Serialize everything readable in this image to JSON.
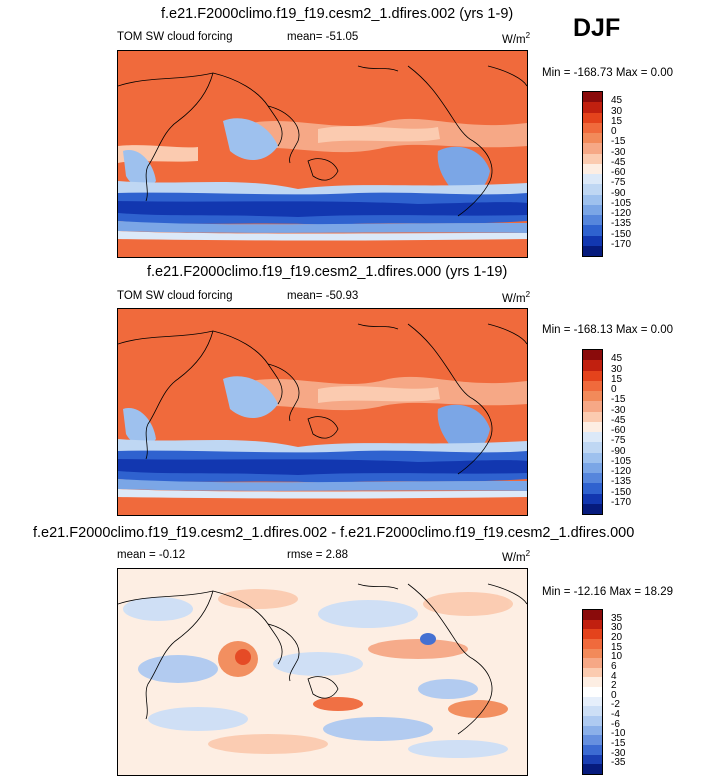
{
  "season": "DJF",
  "panels": [
    {
      "title": "f.e21.F2000climo.f19_f19.cesm2_1.dfires.002 (yrs 1-9)",
      "left_label": "TOM SW cloud forcing",
      "center_label": "mean= -51.05",
      "units": "W/m",
      "units_sup": "2",
      "range_label": "Min = -168.73 Max =   0.00",
      "levels": [
        "45",
        "30",
        "15",
        "0",
        "-15",
        "-30",
        "-45",
        "-60",
        "-75",
        "-90",
        "-105",
        "-120",
        "-135",
        "-150",
        "-170"
      ],
      "colors": [
        "#8a0b0b",
        "#c1200f",
        "#e4431c",
        "#f06a3c",
        "#f28a5a",
        "#f6a886",
        "#fbcbb0",
        "#fdeee3",
        "#dce9f8",
        "#bfd7f3",
        "#9ec1ee",
        "#7ba6e6",
        "#5686dc",
        "#2f62cf",
        "#1237b0",
        "#061b7d"
      ]
    },
    {
      "title": "f.e21.F2000climo.f19_f19.cesm2_1.dfires.000 (yrs 1-19)",
      "left_label": "TOM SW cloud forcing",
      "center_label": "mean= -50.93",
      "units": "W/m",
      "units_sup": "2",
      "range_label": "Min = -168.13 Max =   0.00",
      "levels": [
        "45",
        "30",
        "15",
        "0",
        "-15",
        "-30",
        "-45",
        "-60",
        "-75",
        "-90",
        "-105",
        "-120",
        "-135",
        "-150",
        "-170"
      ],
      "colors": [
        "#8a0b0b",
        "#c1200f",
        "#e4431c",
        "#f06a3c",
        "#f28a5a",
        "#f6a886",
        "#fbcbb0",
        "#fdeee3",
        "#dce9f8",
        "#bfd7f3",
        "#9ec1ee",
        "#7ba6e6",
        "#5686dc",
        "#2f62cf",
        "#1237b0",
        "#061b7d"
      ]
    },
    {
      "title": "f.e21.F2000climo.f19_f19.cesm2_1.dfires.002 - f.e21.F2000climo.f19_f19.cesm2_1.dfires.000",
      "left_label": "mean =  -0.12",
      "center_label": "rmse =  2.88",
      "units": "W/m",
      "units_sup": "2",
      "range_label": "Min = -12.16 Max =  18.29",
      "levels": [
        "35",
        "30",
        "20",
        "15",
        "10",
        "6",
        "4",
        "2",
        "0",
        "-2",
        "-4",
        "-6",
        "-10",
        "-15",
        "-30",
        "-35"
      ],
      "colors": [
        "#8a0b0b",
        "#c1200f",
        "#e4431c",
        "#f06a3c",
        "#f28a5a",
        "#f6a886",
        "#fbcbb0",
        "#fdeee3",
        "#ffffff",
        "#e6effb",
        "#cddff6",
        "#aecaf1",
        "#8bb0e9",
        "#6690df",
        "#3c6bd2",
        "#1a3fb3",
        "#061b7d"
      ]
    }
  ]
}
